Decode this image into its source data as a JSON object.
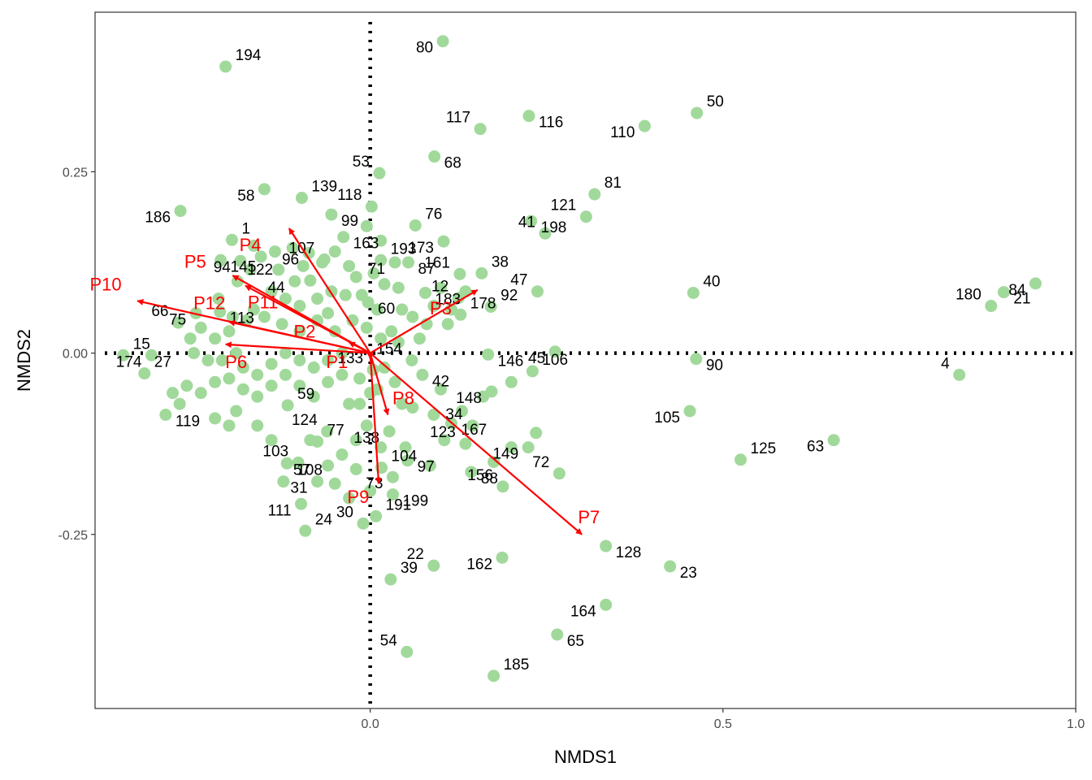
{
  "chart_data": {
    "type": "scatter",
    "title": "",
    "xlabel": "NMDS1",
    "ylabel": "NMDS2",
    "xlim": [
      -0.39,
      1.0
    ],
    "ylim": [
      -0.49,
      0.47
    ],
    "x_ticks": [
      {
        "v": 0.0,
        "label": "0.0"
      },
      {
        "v": 0.5,
        "label": "0.5"
      },
      {
        "v": 1.0,
        "label": "1.0"
      }
    ],
    "y_ticks": [
      {
        "v": -0.25,
        "label": "-0.25"
      },
      {
        "v": 0.0,
        "label": "0.00"
      },
      {
        "v": 0.25,
        "label": "0.25"
      }
    ],
    "grid": false,
    "reference_lines": [
      {
        "axis": "x",
        "value": 0
      },
      {
        "axis": "y",
        "value": 0
      }
    ],
    "colors": {
      "points": "#a1d99b",
      "arrows": "#ff0000",
      "frame": "#333333",
      "refline": "#000000"
    },
    "labeled_points": [
      {
        "label": "194",
        "x": -0.205,
        "y": 0.395
      },
      {
        "label": "80",
        "x": 0.103,
        "y": 0.43
      },
      {
        "label": "116",
        "x": 0.225,
        "y": 0.327
      },
      {
        "label": "117",
        "x": 0.156,
        "y": 0.309
      },
      {
        "label": "50",
        "x": 0.463,
        "y": 0.331
      },
      {
        "label": "110",
        "x": 0.389,
        "y": 0.313
      },
      {
        "label": "68",
        "x": 0.091,
        "y": 0.271
      },
      {
        "label": "53",
        "x": 0.013,
        "y": 0.248
      },
      {
        "label": "139",
        "x": -0.097,
        "y": 0.214
      },
      {
        "label": "58",
        "x": -0.15,
        "y": 0.226
      },
      {
        "label": "99",
        "x": -0.055,
        "y": 0.191
      },
      {
        "label": "118",
        "x": 0.002,
        "y": 0.202
      },
      {
        "label": "81",
        "x": 0.318,
        "y": 0.219
      },
      {
        "label": "186",
        "x": -0.269,
        "y": 0.196
      },
      {
        "label": "198",
        "x": 0.228,
        "y": 0.182
      },
      {
        "label": "121",
        "x": 0.306,
        "y": 0.188
      },
      {
        "label": "76",
        "x": 0.064,
        "y": 0.176
      },
      {
        "label": "173",
        "x": 0.104,
        "y": 0.154
      },
      {
        "label": "87",
        "x": 0.054,
        "y": 0.125
      },
      {
        "label": "41",
        "x": 0.248,
        "y": 0.165
      },
      {
        "label": "1",
        "x": -0.196,
        "y": 0.156
      },
      {
        "label": "96",
        "x": -0.087,
        "y": 0.138
      },
      {
        "label": "163",
        "x": -0.038,
        "y": 0.16
      },
      {
        "label": "107",
        "x": -0.065,
        "y": 0.129
      },
      {
        "label": "193",
        "x": 0.015,
        "y": 0.128
      },
      {
        "label": "94",
        "x": -0.184,
        "y": 0.127
      },
      {
        "label": "145",
        "x": -0.212,
        "y": 0.128
      },
      {
        "label": "161",
        "x": 0.127,
        "y": 0.109
      },
      {
        "label": "38",
        "x": 0.158,
        "y": 0.11
      },
      {
        "label": "71",
        "x": 0.035,
        "y": 0.125
      },
      {
        "label": "183",
        "x": 0.078,
        "y": 0.083
      },
      {
        "label": "47",
        "x": 0.237,
        "y": 0.085
      },
      {
        "label": "40",
        "x": 0.458,
        "y": 0.083
      },
      {
        "label": "84",
        "x": 0.943,
        "y": 0.096
      },
      {
        "label": "21",
        "x": 0.898,
        "y": 0.084
      },
      {
        "label": "180",
        "x": 0.88,
        "y": 0.065
      },
      {
        "label": "122",
        "x": -0.188,
        "y": 0.099
      },
      {
        "label": "44",
        "x": -0.107,
        "y": 0.099
      },
      {
        "label": "60",
        "x": -0.003,
        "y": 0.07
      },
      {
        "label": "12",
        "x": 0.125,
        "y": 0.076
      },
      {
        "label": "92",
        "x": 0.171,
        "y": 0.064
      },
      {
        "label": "75",
        "x": -0.247,
        "y": 0.055
      },
      {
        "label": "113",
        "x": -0.213,
        "y": 0.057
      },
      {
        "label": "66",
        "x": -0.272,
        "y": 0.042
      },
      {
        "label": "178",
        "x": 0.128,
        "y": 0.053
      },
      {
        "label": "45",
        "x": 0.262,
        "y": 0.002
      },
      {
        "label": "146",
        "x": 0.167,
        "y": -0.002
      },
      {
        "label": "154",
        "x": 0.059,
        "y": -0.01
      },
      {
        "label": "15",
        "x": -0.35,
        "y": -0.003
      },
      {
        "label": "174",
        "x": -0.31,
        "y": -0.003
      },
      {
        "label": "90",
        "x": 0.462,
        "y": -0.008
      },
      {
        "label": "4",
        "x": 0.835,
        "y": -0.03
      },
      {
        "label": "106",
        "x": 0.23,
        "y": -0.025
      },
      {
        "label": "148",
        "x": 0.172,
        "y": -0.053
      },
      {
        "label": "42",
        "x": 0.074,
        "y": -0.03
      },
      {
        "label": "133",
        "x": 0.004,
        "y": -0.023
      },
      {
        "label": "27",
        "x": -0.32,
        "y": -0.028
      },
      {
        "label": "105",
        "x": 0.453,
        "y": -0.08
      },
      {
        "label": "167",
        "x": 0.115,
        "y": -0.097
      },
      {
        "label": "34",
        "x": 0.145,
        "y": -0.1
      },
      {
        "label": "59",
        "x": -0.117,
        "y": -0.072
      },
      {
        "label": "138",
        "x": 0.027,
        "y": -0.108
      },
      {
        "label": "119",
        "x": -0.29,
        "y": -0.085
      },
      {
        "label": "124",
        "x": -0.061,
        "y": -0.108
      },
      {
        "label": "77",
        "x": -0.075,
        "y": -0.122
      },
      {
        "label": "149",
        "x": 0.224,
        "y": -0.13
      },
      {
        "label": "97",
        "x": 0.053,
        "y": -0.148
      },
      {
        "label": "123",
        "x": 0.135,
        "y": -0.125
      },
      {
        "label": "125",
        "x": 0.525,
        "y": -0.147
      },
      {
        "label": "63",
        "x": 0.657,
        "y": -0.12
      },
      {
        "label": "108",
        "x": -0.118,
        "y": -0.152
      },
      {
        "label": "103",
        "x": -0.102,
        "y": -0.151
      },
      {
        "label": "104",
        "x": 0.016,
        "y": -0.158
      },
      {
        "label": "73",
        "x": 0.032,
        "y": -0.171
      },
      {
        "label": "88",
        "x": 0.143,
        "y": -0.164
      },
      {
        "label": "72",
        "x": 0.268,
        "y": -0.166
      },
      {
        "label": "57",
        "x": -0.123,
        "y": -0.177
      },
      {
        "label": "31",
        "x": -0.075,
        "y": -0.177
      },
      {
        "label": "199",
        "x": 0.032,
        "y": -0.195
      },
      {
        "label": "156",
        "x": 0.188,
        "y": -0.184
      },
      {
        "label": "191",
        "x": 0.008,
        "y": -0.225
      },
      {
        "label": "111",
        "x": -0.098,
        "y": -0.208
      },
      {
        "label": "128",
        "x": 0.334,
        "y": -0.266
      },
      {
        "label": "30",
        "x": -0.01,
        "y": -0.235
      },
      {
        "label": "24",
        "x": -0.092,
        "y": -0.245
      },
      {
        "label": "162",
        "x": 0.187,
        "y": -0.282
      },
      {
        "label": "23",
        "x": 0.425,
        "y": -0.294
      },
      {
        "label": "22",
        "x": 0.09,
        "y": -0.293
      },
      {
        "label": "39",
        "x": 0.029,
        "y": -0.312
      },
      {
        "label": "164",
        "x": 0.334,
        "y": -0.347
      },
      {
        "label": "65",
        "x": 0.265,
        "y": -0.388
      },
      {
        "label": "54",
        "x": 0.052,
        "y": -0.412
      },
      {
        "label": "185",
        "x": 0.175,
        "y": -0.445
      }
    ],
    "unlabeled_points": [
      [
        -0.165,
        0.148
      ],
      [
        -0.155,
        0.133
      ],
      [
        -0.135,
        0.14
      ],
      [
        -0.11,
        0.145
      ],
      [
        -0.095,
        0.12
      ],
      [
        -0.085,
        0.1
      ],
      [
        -0.068,
        0.125
      ],
      [
        -0.05,
        0.14
      ],
      [
        -0.03,
        0.12
      ],
      [
        -0.02,
        0.105
      ],
      [
        -0.012,
        0.08
      ],
      [
        -0.035,
        0.08
      ],
      [
        -0.055,
        0.085
      ],
      [
        -0.075,
        0.075
      ],
      [
        -0.1,
        0.065
      ],
      [
        -0.12,
        0.075
      ],
      [
        -0.14,
        0.085
      ],
      [
        -0.165,
        0.06
      ],
      [
        -0.175,
        0.045
      ],
      [
        -0.15,
        0.05
      ],
      [
        -0.125,
        0.04
      ],
      [
        -0.1,
        0.03
      ],
      [
        -0.075,
        0.045
      ],
      [
        -0.05,
        0.03
      ],
      [
        -0.025,
        0.045
      ],
      [
        -0.005,
        0.035
      ],
      [
        0.01,
        0.06
      ],
      [
        0.02,
        0.095
      ],
      [
        0.005,
        0.11
      ],
      [
        -0.005,
        0.175
      ],
      [
        0.015,
        0.155
      ],
      [
        0.04,
        0.09
      ],
      [
        0.045,
        0.06
      ],
      [
        0.06,
        0.05
      ],
      [
        0.09,
        0.065
      ],
      [
        0.115,
        0.06
      ],
      [
        0.1,
        0.09
      ],
      [
        0.11,
        0.04
      ],
      [
        0.07,
        0.02
      ],
      [
        0.04,
        0.015
      ],
      [
        0.015,
        0.02
      ],
      [
        -0.2,
        0.03
      ],
      [
        -0.22,
        0.02
      ],
      [
        -0.24,
        0.035
      ],
      [
        -0.19,
        0.0
      ],
      [
        -0.21,
        -0.01
      ],
      [
        -0.23,
        -0.01
      ],
      [
        -0.25,
        0.0
      ],
      [
        -0.18,
        -0.02
      ],
      [
        -0.2,
        -0.035
      ],
      [
        -0.22,
        -0.04
      ],
      [
        -0.24,
        -0.055
      ],
      [
        -0.26,
        -0.045
      ],
      [
        -0.28,
        -0.055
      ],
      [
        -0.27,
        -0.07
      ],
      [
        -0.18,
        -0.05
      ],
      [
        -0.16,
        -0.03
      ],
      [
        -0.16,
        -0.06
      ],
      [
        -0.14,
        -0.045
      ],
      [
        -0.14,
        -0.015
      ],
      [
        -0.12,
        0.0
      ],
      [
        -0.12,
        -0.03
      ],
      [
        -0.1,
        -0.01
      ],
      [
        -0.1,
        -0.045
      ],
      [
        -0.08,
        -0.02
      ],
      [
        -0.08,
        -0.06
      ],
      [
        -0.06,
        -0.01
      ],
      [
        -0.06,
        -0.04
      ],
      [
        -0.04,
        0.0
      ],
      [
        -0.04,
        -0.03
      ],
      [
        -0.03,
        -0.07
      ],
      [
        -0.015,
        -0.035
      ],
      [
        -0.015,
        -0.07
      ],
      [
        -0.005,
        -0.1
      ],
      [
        0.0,
        -0.055
      ],
      [
        0.01,
        -0.05
      ],
      [
        0.02,
        -0.02
      ],
      [
        0.035,
        -0.04
      ],
      [
        0.045,
        -0.07
      ],
      [
        0.06,
        -0.075
      ],
      [
        0.09,
        -0.085
      ],
      [
        0.1,
        -0.05
      ],
      [
        0.13,
        -0.08
      ],
      [
        0.16,
        -0.06
      ],
      [
        0.2,
        -0.13
      ],
      [
        0.2,
        -0.04
      ],
      [
        0.235,
        -0.11
      ],
      [
        0.085,
        -0.155
      ],
      [
        0.105,
        -0.12
      ],
      [
        0.175,
        -0.15
      ],
      [
        0.015,
        -0.13
      ],
      [
        -0.02,
        -0.12
      ],
      [
        -0.04,
        -0.14
      ],
      [
        -0.06,
        -0.155
      ],
      [
        -0.085,
        -0.12
      ],
      [
        -0.14,
        -0.12
      ],
      [
        -0.16,
        -0.1
      ],
      [
        -0.19,
        -0.08
      ],
      [
        -0.22,
        -0.09
      ],
      [
        -0.2,
        -0.1
      ],
      [
        -0.03,
        -0.2
      ],
      [
        -0.05,
        -0.18
      ],
      [
        -0.02,
        -0.16
      ],
      [
        0.0,
        -0.19
      ],
      [
        0.05,
        -0.13
      ],
      [
        -0.13,
        0.115
      ],
      [
        -0.17,
        0.115
      ],
      [
        -0.06,
        0.055
      ],
      [
        0.03,
        0.03
      ],
      [
        0.08,
        0.04
      ],
      [
        0.135,
        0.085
      ],
      [
        -0.215,
        0.075
      ],
      [
        -0.195,
        0.05
      ],
      [
        -0.255,
        0.02
      ]
    ],
    "vectors": [
      {
        "name": "P1",
        "x": 0.0,
        "y": -0.008,
        "label_x": -0.047,
        "label_y": -0.014
      },
      {
        "name": "P2",
        "x": -0.03,
        "y": 0.015,
        "label_x": -0.093,
        "label_y": 0.028
      },
      {
        "name": "P3",
        "x": 0.152,
        "y": 0.087,
        "label_x": 0.1,
        "label_y": 0.06
      },
      {
        "name": "P4",
        "x": -0.115,
        "y": 0.172,
        "label_x": -0.17,
        "label_y": 0.147
      },
      {
        "name": "P5",
        "x": -0.195,
        "y": 0.107,
        "label_x": -0.248,
        "label_y": 0.124
      },
      {
        "name": "P6",
        "x": -0.205,
        "y": 0.012,
        "label_x": -0.19,
        "label_y": -0.014
      },
      {
        "name": "P7",
        "x": 0.3,
        "y": -0.25,
        "label_x": 0.31,
        "label_y": -0.228
      },
      {
        "name": "P8",
        "x": 0.025,
        "y": -0.085,
        "label_x": 0.047,
        "label_y": -0.064
      },
      {
        "name": "P9",
        "x": 0.012,
        "y": -0.18,
        "label_x": -0.017,
        "label_y": -0.2
      },
      {
        "name": "P10",
        "x": -0.33,
        "y": 0.072,
        "label_x": -0.375,
        "label_y": 0.093
      },
      {
        "name": "P11",
        "x": -0.177,
        "y": 0.093,
        "label_x": -0.152,
        "label_y": 0.068
      },
      {
        "name": "P12",
        "x": -0.2,
        "y": 0.043,
        "label_x": -0.228,
        "label_y": 0.067
      }
    ]
  }
}
